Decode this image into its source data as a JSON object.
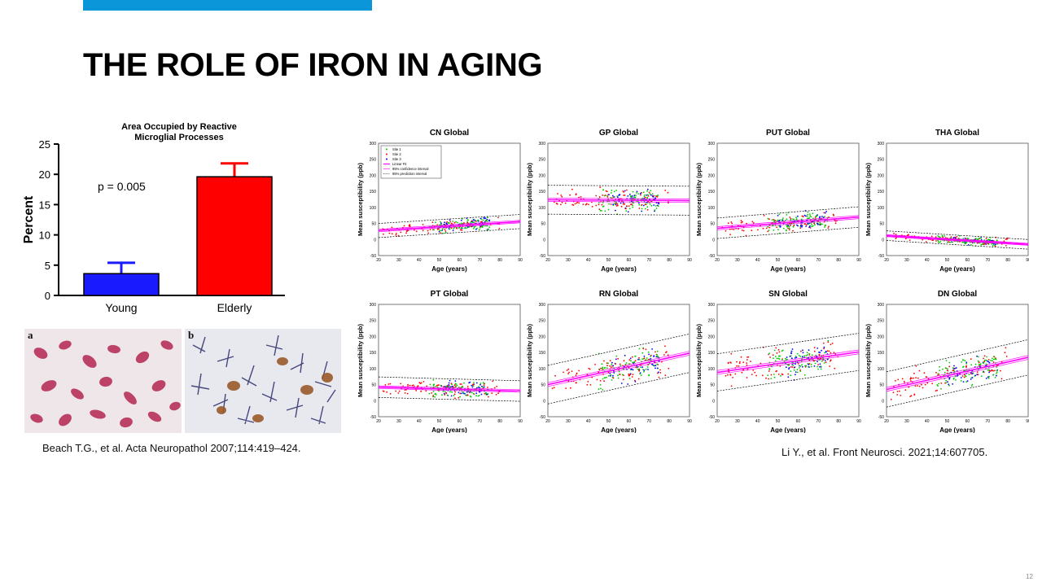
{
  "slide": {
    "title": "THE ROLE OF IRON IN AGING",
    "accent_color": "#0a96d8",
    "page_number": "12"
  },
  "citations": {
    "left": "Beach T.G., et al. Acta Neuropathol 2007;114:419–424.",
    "right": "Li Y., et al. Front Neurosci. 2021;14:607705."
  },
  "micrographs": {
    "a_label": "a",
    "b_label": "b"
  },
  "chart_data": [
    {
      "type": "bar",
      "title": "Area Occupied by Reactive Microglial Processes",
      "title_lines": [
        "Area Occupied by Reactive",
        "Microglial Processes"
      ],
      "ylabel": "Percent",
      "xlabel": "",
      "ylim": [
        0,
        25
      ],
      "yticks": [
        "0",
        "5",
        "10",
        "15",
        "20",
        "25"
      ],
      "categories": [
        "Young",
        "Elderly"
      ],
      "values": [
        3.6,
        19.6
      ],
      "errors": [
        1.8,
        2.2
      ],
      "colors": [
        "#1a1aff",
        "#ff0000"
      ],
      "annotation": "p = 0.005"
    },
    {
      "type": "scatter",
      "panels": [
        {
          "title": "CN Global",
          "ylim": [
            -50,
            300
          ],
          "fit": [
            28,
            56
          ],
          "ci": 4,
          "pi": 22
        },
        {
          "title": "GP Global",
          "ylim": [
            -50,
            300
          ],
          "fit": [
            124,
            121
          ],
          "ci": 5,
          "pi": 45
        },
        {
          "title": "PUT Global",
          "ylim": [
            -50,
            300
          ],
          "fit": [
            35,
            70
          ],
          "ci": 5,
          "pi": 32
        },
        {
          "title": "THA Global",
          "ylim": [
            -50,
            300
          ],
          "fit": [
            12,
            -15
          ],
          "ci": 3,
          "pi": 15
        },
        {
          "title": "PT Global",
          "ylim": [
            -50,
            300
          ],
          "fit": [
            42,
            30
          ],
          "ci": 4,
          "pi": 32
        },
        {
          "title": "RN Global",
          "ylim": [
            -50,
            300
          ],
          "fit": [
            50,
            148
          ],
          "ci": 6,
          "pi": 60
        },
        {
          "title": "SN Global",
          "ylim": [
            -50,
            300
          ],
          "fit": [
            88,
            152
          ],
          "ci": 6,
          "pi": 58
        },
        {
          "title": "DN Global",
          "ylim": [
            -50,
            300
          ],
          "fit": [
            35,
            135
          ],
          "ci": 6,
          "pi": 55
        }
      ],
      "xlabel": "Age (years)",
      "ylabel": "Mean susceptibility (ppb)",
      "xlim": [
        20,
        90
      ],
      "xticks": [
        "20",
        "30",
        "40",
        "50",
        "60",
        "70",
        "80",
        "90"
      ],
      "yticks": [
        "-50",
        "0",
        "50",
        "100",
        "150",
        "200",
        "250",
        "300"
      ],
      "legend": {
        "position": "top-left",
        "entries": [
          "Site 1",
          "Site 2",
          "Site 3",
          "Linear Fit",
          "95% confidence interval",
          "95% prediction interval"
        ]
      },
      "series_colors": [
        "#00cc00",
        "#ff0000",
        "#0000ff",
        "#ff00ff",
        "#000000"
      ]
    }
  ]
}
